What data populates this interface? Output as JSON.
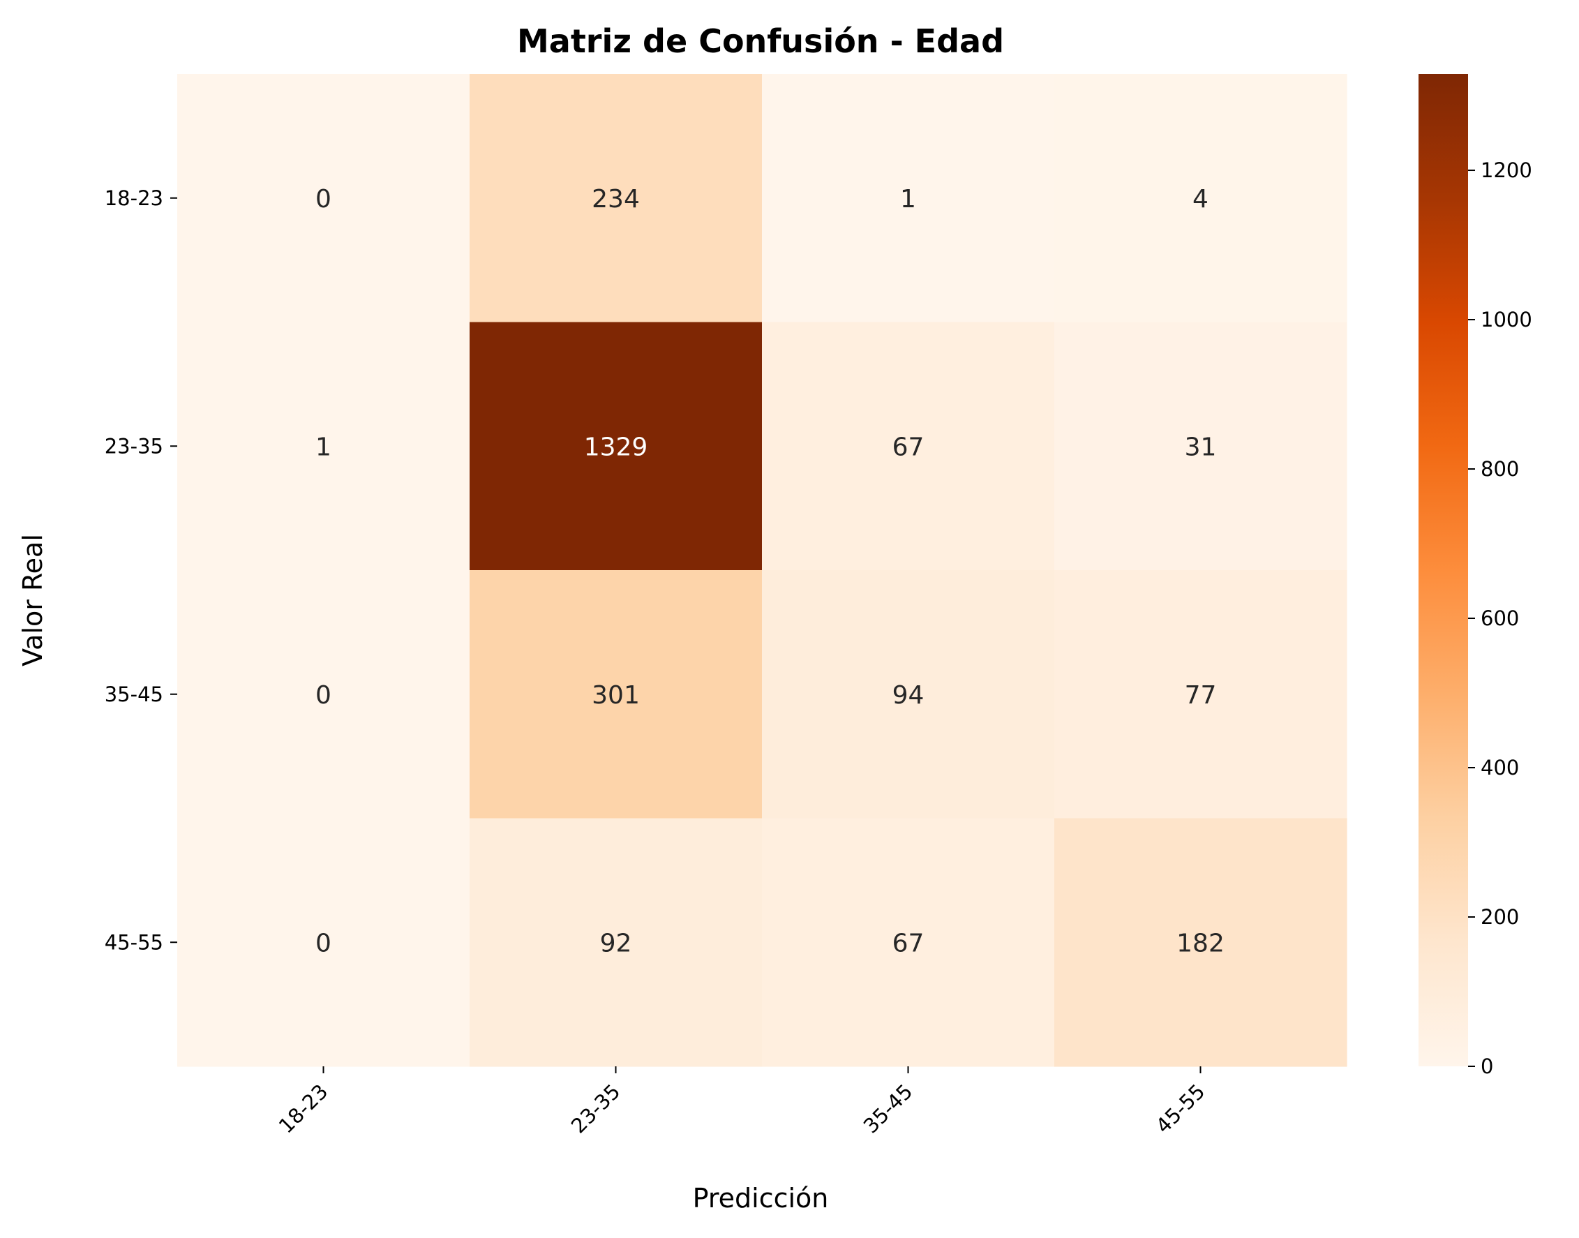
{
  "chart_data": {
    "type": "heatmap",
    "title": "Matriz de Confusión - Edad",
    "xlabel": "Predicción",
    "ylabel": "Valor Real",
    "x_categories": [
      "18-23",
      "23-35",
      "35-45",
      "45-55"
    ],
    "y_categories": [
      "18-23",
      "23-35",
      "35-45",
      "45-55"
    ],
    "values": [
      [
        0,
        234,
        1,
        4
      ],
      [
        1,
        1329,
        67,
        31
      ],
      [
        0,
        301,
        94,
        77
      ],
      [
        0,
        92,
        67,
        182
      ]
    ],
    "colorbar": {
      "colormap": "Oranges",
      "range": [
        0,
        1329
      ],
      "ticks": [
        0,
        200,
        400,
        600,
        800,
        1000,
        1200
      ]
    },
    "colors": {
      "low": "#fff5eb",
      "high": "#7f2704",
      "text_dark": "#262626",
      "text_light": "#ffffff"
    }
  }
}
